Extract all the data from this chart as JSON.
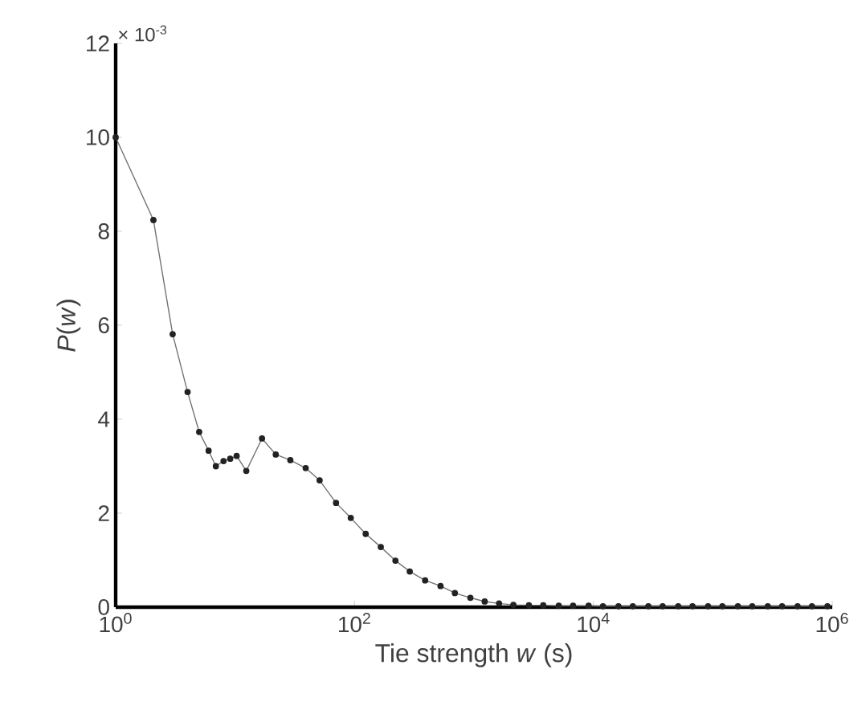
{
  "chart_data": {
    "type": "line",
    "xlabel": "Tie strength *w* (s)",
    "ylabel": "*P*(*w*)",
    "annotations": [
      "× 10$^{-3}$"
    ],
    "log": "x",
    "marker": "circle",
    "line_style": "solid",
    "grid": false,
    "xlim": [
      1,
      1000000
    ],
    "ylim": [
      0,
      12
    ],
    "xticks": [
      {
        "value": 1,
        "label": "10$^{0}$"
      },
      {
        "value": 100,
        "label": "10$^{2}$"
      },
      {
        "value": 10000,
        "label": "10$^{4}$"
      },
      {
        "value": 1000000,
        "label": "10$^{6}$"
      }
    ],
    "yticks": [
      0,
      2,
      4,
      6,
      8,
      10,
      12
    ],
    "series": [
      {
        "color": "#222222",
        "x": [
          1,
          2.07,
          3.0,
          4.0,
          5.0,
          6.0,
          6.9,
          8,
          9.1,
          10.3,
          12.4,
          16.8,
          21.9,
          29,
          39,
          51,
          70,
          93,
          124,
          166,
          220,
          290,
          390,
          525,
          692,
          933,
          1230,
          1622,
          2138,
          2884,
          3802,
          5129,
          6761,
          9120,
          12023,
          16218,
          21380,
          28840,
          38019,
          51286,
          67608,
          91201,
          120226,
          162181,
          213796,
          288403,
          380189,
          512861,
          676083,
          912011
        ],
        "values": [
          10.0,
          8.24,
          5.81,
          4.58,
          3.73,
          3.33,
          3.0,
          3.11,
          3.16,
          3.22,
          2.9,
          3.59,
          3.25,
          3.13,
          2.96,
          2.7,
          2.22,
          1.9,
          1.56,
          1.28,
          0.99,
          0.76,
          0.57,
          0.45,
          0.3,
          0.2,
          0.12,
          0.08,
          0.05,
          0.04,
          0.04,
          0.03,
          0.03,
          0.03,
          0.02,
          0.02,
          0.02,
          0.02,
          0.02,
          0.02,
          0.02,
          0.02,
          0.02,
          0.02,
          0.02,
          0.02,
          0.02,
          0.02,
          0.02,
          0.02
        ]
      }
    ]
  }
}
